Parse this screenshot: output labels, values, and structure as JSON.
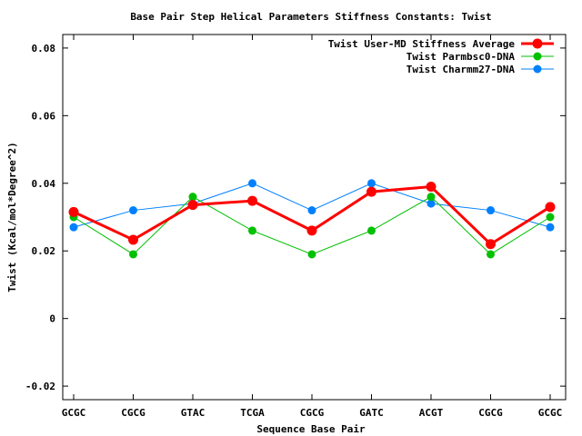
{
  "chart_data": {
    "type": "line",
    "title": "Base Pair Step Helical Parameters Stiffness Constants: Twist",
    "xlabel": "Sequence Base Pair",
    "ylabel": "Twist (Kcal/mol*Degree^2)",
    "categories": [
      "GCGC",
      "CGCG",
      "GTAC",
      "TCGA",
      "CGCG",
      "GATC",
      "ACGT",
      "CGCG",
      "GCGC"
    ],
    "ylim": [
      -0.024,
      0.084
    ],
    "yticks": [
      {
        "value": -0.02,
        "label": "-0.02"
      },
      {
        "value": 0,
        "label": "0"
      },
      {
        "value": 0.02,
        "label": "0.02"
      },
      {
        "value": 0.04,
        "label": "0.04"
      },
      {
        "value": 0.06,
        "label": "0.06"
      },
      {
        "value": 0.08,
        "label": "0.08"
      }
    ],
    "grid": false,
    "legend_position": "top-right",
    "series": [
      {
        "name": "Twist User-MD Stiffness Average",
        "color": "#ff0000",
        "values": [
          0.0315,
          0.0233,
          0.0336,
          0.0348,
          0.026,
          0.0375,
          0.039,
          0.022,
          0.033
        ]
      },
      {
        "name": "Twist Parmbsc0-DNA",
        "color": "#00c000",
        "values": [
          0.03,
          0.019,
          0.036,
          0.026,
          0.019,
          0.026,
          0.036,
          0.019,
          0.03
        ]
      },
      {
        "name": "Twist Charmm27-DNA",
        "color": "#0080ff",
        "values": [
          0.027,
          0.032,
          0.034,
          0.04,
          0.032,
          0.04,
          0.034,
          0.032,
          0.027
        ]
      }
    ]
  }
}
